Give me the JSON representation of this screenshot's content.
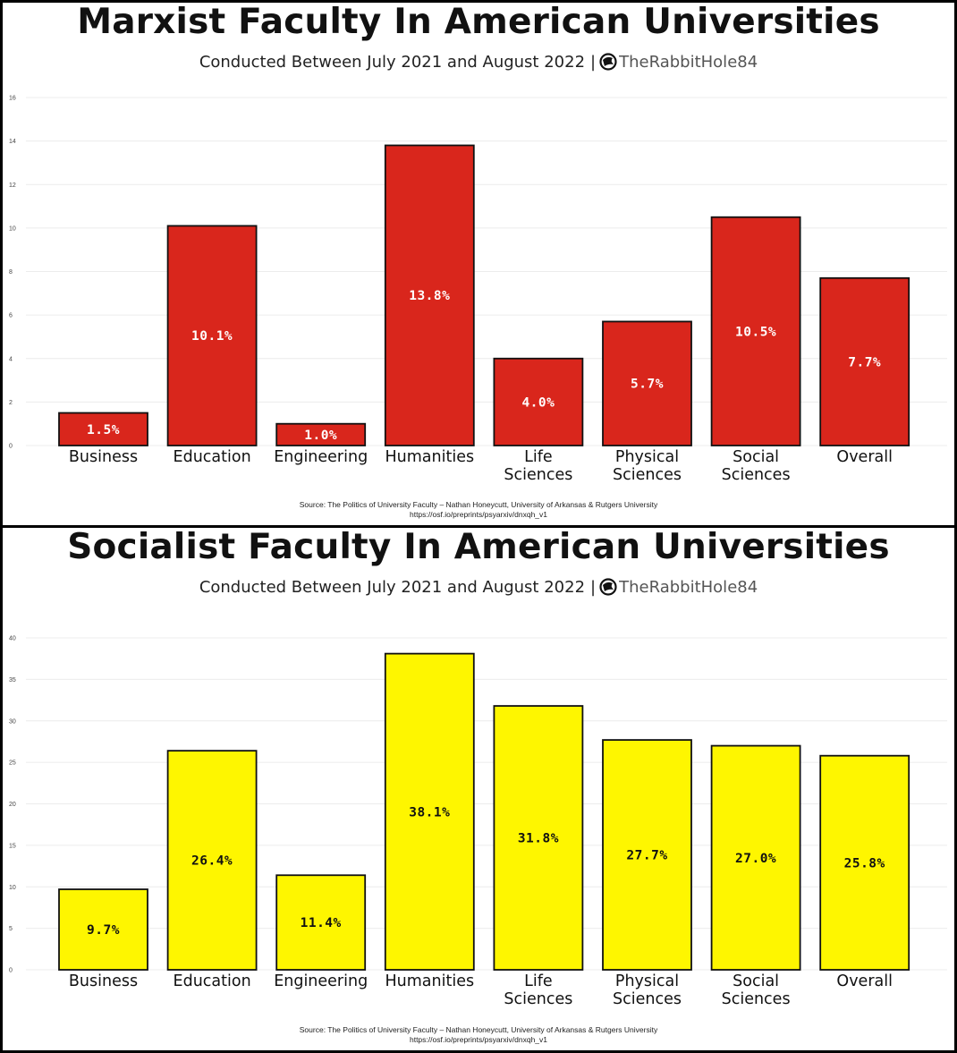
{
  "chart_data": [
    {
      "type": "bar",
      "title": "Marxist Faculty In American Universities",
      "subtitle": "Conducted Between July 2021 and August 2022",
      "brand": "TheRabbitHole84",
      "categories": [
        [
          "Business"
        ],
        [
          "Education"
        ],
        [
          "Engineering"
        ],
        [
          "Humanities"
        ],
        [
          "Life",
          "Sciences"
        ],
        [
          "Physical",
          "Sciences"
        ],
        [
          "Social",
          "Sciences"
        ],
        [
          "Overall"
        ]
      ],
      "values": [
        1.5,
        10.1,
        1.0,
        13.8,
        4.0,
        5.7,
        10.5,
        7.7
      ],
      "labels": [
        "1.5%",
        "10.1%",
        "1.0%",
        "13.8%",
        "4.0%",
        "5.7%",
        "10.5%",
        "7.7%"
      ],
      "yticks": [
        0,
        2,
        4,
        6,
        8,
        10,
        12,
        14,
        16
      ],
      "ylim": [
        0,
        16
      ],
      "xlabel": "",
      "ylabel": "",
      "grid": true,
      "bar_color": "#d9261c",
      "label_color": "#ffffff",
      "source": "Source: The Politics of University Faculty – Nathan Honeycutt, University of Arkansas & Rutgers University",
      "url": "https://osf.io/preprints/psyarxiv/dnxqh_v1"
    },
    {
      "type": "bar",
      "title": "Socialist Faculty In American Universities",
      "subtitle": "Conducted Between July 2021 and August 2022",
      "brand": "TheRabbitHole84",
      "categories": [
        [
          "Business"
        ],
        [
          "Education"
        ],
        [
          "Engineering"
        ],
        [
          "Humanities"
        ],
        [
          "Life",
          "Sciences"
        ],
        [
          "Physical",
          "Sciences"
        ],
        [
          "Social",
          "Sciences"
        ],
        [
          "Overall"
        ]
      ],
      "values": [
        9.7,
        26.4,
        11.4,
        38.1,
        31.8,
        27.7,
        27.0,
        25.8
      ],
      "labels": [
        "9.7%",
        "26.4%",
        "11.4%",
        "38.1%",
        "31.8%",
        "27.7%",
        "27.0%",
        "25.8%"
      ],
      "yticks": [
        0,
        5,
        10,
        15,
        20,
        25,
        30,
        35,
        40
      ],
      "ylim": [
        0,
        40
      ],
      "xlabel": "",
      "ylabel": "",
      "grid": true,
      "bar_color": "#fef600",
      "label_color": "#111111",
      "source": "Source: The Politics of University Faculty – Nathan Honeycutt, University of Arkansas & Rutgers University",
      "url": "https://osf.io/preprints/psyarxiv/dnxqh_v1"
    }
  ]
}
